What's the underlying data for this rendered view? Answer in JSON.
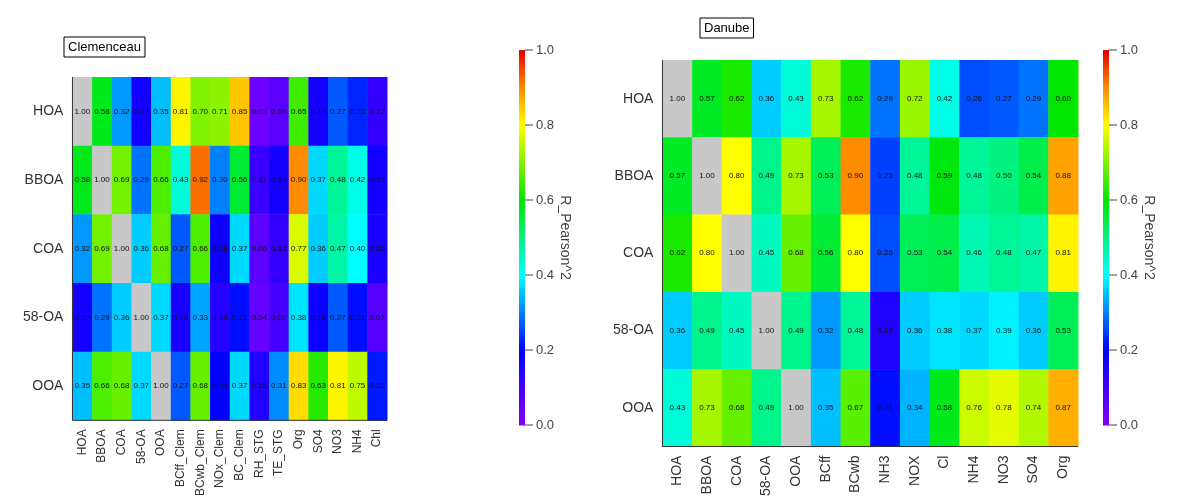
{
  "chart_data": [
    {
      "type": "heatmap",
      "title": "Clemenceau",
      "clabel": "R_Pearson^2",
      "categories": [
        "HOA",
        "BBOA",
        "COA",
        "58-OA",
        "OOA",
        "BCff_Clem",
        "BCwb_Clem",
        "NOx_Clem",
        "BC_Clem",
        "RH_STG",
        "TE_STG",
        "Org",
        "SO4",
        "NO3",
        "NH4",
        "Chl"
      ],
      "y_categories": [
        "HOA",
        "BBOA",
        "COA",
        "58-OA",
        "OOA"
      ],
      "cells": [
        [
          null,
          0.58,
          0.32,
          0.17,
          0.35,
          0.81,
          0.7,
          0.71,
          0.85,
          0.03,
          0.06,
          0.65,
          0.17,
          0.27,
          0.23,
          0.12
        ],
        [
          0.58,
          null,
          0.69,
          0.29,
          0.66,
          0.43,
          0.92,
          0.3,
          0.56,
          0.11,
          0.17,
          0.9,
          0.37,
          0.48,
          0.42,
          0.17
        ],
        [
          0.32,
          0.69,
          null,
          0.36,
          0.68,
          0.27,
          0.66,
          0.18,
          0.37,
          0.06,
          0.12,
          0.77,
          0.36,
          0.47,
          0.4,
          0.16
        ],
        [
          0.17,
          0.29,
          0.36,
          null,
          0.37,
          0.16,
          0.33,
          0.14,
          0.21,
          0.04,
          0.09,
          0.38,
          0.18,
          0.27,
          0.21,
          0.07
        ],
        [
          0.35,
          0.66,
          0.68,
          0.37,
          null,
          0.27,
          0.68,
          0.2,
          0.37,
          0.15,
          0.31,
          0.83,
          0.63,
          0.81,
          0.75,
          0.22
        ]
      ],
      "cell_labels": [
        [
          "1.00",
          "0.58",
          "0.32",
          "0.17",
          "0.35",
          "0.81",
          "0.70",
          "0.71",
          "0.85",
          "0.03",
          "0.06",
          "0.65",
          "0.17",
          "0.27",
          "0.23",
          "0.12"
        ],
        [
          "0.58",
          "1.00",
          "0.69",
          "0.29",
          "0.66",
          "0.43",
          "0.92",
          "0.30",
          "0.56",
          "0.11",
          "0.17",
          "0.90",
          "0.37",
          "0.48",
          "0.42",
          "0.17"
        ],
        [
          "0.32",
          "0.69",
          "1.00",
          "0.36",
          "0.68",
          "0.27",
          "0.66",
          "0.18",
          "0.37",
          "0.06",
          "0.12",
          "0.77",
          "0.36",
          "0.47",
          "0.40",
          "0.16"
        ],
        [
          "0.17",
          "0.29",
          "0.36",
          "1.00",
          "0.37",
          "0.16",
          "0.33",
          "0.14",
          "0.21",
          "0.04",
          "0.09",
          "0.38",
          "0.18",
          "0.27",
          "0.21",
          "0.07"
        ],
        [
          "0.35",
          "0.66",
          "0.68",
          "0.37",
          "1.00",
          "0.27",
          "0.68",
          "0.20",
          "0.37",
          "0.15",
          "0.31",
          "0.83",
          "0.63",
          "0.81",
          "0.75",
          "0.22"
        ]
      ],
      "clim": [
        0,
        1
      ],
      "cticks": [
        {
          "value": 0,
          "label": "0.0"
        },
        {
          "value": 0.2,
          "label": "0.2"
        },
        {
          "value": 0.4,
          "label": "0.4"
        },
        {
          "value": 0.6,
          "label": "0.6"
        },
        {
          "value": 0.8,
          "label": "0.8"
        },
        {
          "value": 1,
          "label": "1.0"
        }
      ]
    },
    {
      "type": "heatmap",
      "title": "Danube",
      "clabel": "R_Pearson^2",
      "categories": [
        "HOA",
        "BBOA",
        "COA",
        "58-OA",
        "OOA",
        "BCff",
        "BCwb",
        "NH3",
        "NOX",
        "Cl",
        "NH4",
        "NO3",
        "SO4",
        "Org"
      ],
      "y_categories": [
        "HOA",
        "BBOA",
        "COA",
        "58-OA",
        "OOA"
      ],
      "cells": [
        [
          null,
          0.57,
          0.62,
          0.36,
          0.43,
          0.73,
          0.62,
          0.29,
          0.72,
          0.42,
          0.26,
          0.27,
          0.29,
          0.6
        ],
        [
          0.57,
          null,
          0.8,
          0.49,
          0.73,
          0.53,
          0.9,
          0.25,
          0.48,
          0.59,
          0.48,
          0.5,
          0.54,
          0.88
        ],
        [
          0.62,
          0.8,
          null,
          0.45,
          0.68,
          0.56,
          0.8,
          0.26,
          0.53,
          0.54,
          0.46,
          0.48,
          0.47,
          0.81
        ],
        [
          0.36,
          0.49,
          0.45,
          null,
          0.49,
          0.32,
          0.48,
          0.15,
          0.36,
          0.38,
          0.37,
          0.39,
          0.36,
          0.53
        ],
        [
          0.43,
          0.73,
          0.68,
          0.49,
          null,
          0.35,
          0.67,
          0.21,
          0.34,
          0.58,
          0.76,
          0.78,
          0.74,
          0.87
        ]
      ],
      "cell_labels": [
        [
          "1.00",
          "0.57",
          "0.62",
          "0.36",
          "0.43",
          "0.73",
          "0.62",
          "0.29",
          "0.72",
          "0.42",
          "0.26",
          "0.27",
          "0.29",
          "0.60"
        ],
        [
          "0.57",
          "1.00",
          "0.80",
          "0.49",
          "0.73",
          "0.53",
          "0.90",
          "0.25",
          "0.48",
          "0.59",
          "0.48",
          "0.50",
          "0.54",
          "0.88"
        ],
        [
          "0.62",
          "0.80",
          "1.00",
          "0.45",
          "0.68",
          "0.56",
          "0.80",
          "0.26",
          "0.53",
          "0.54",
          "0.46",
          "0.48",
          "0.47",
          "0.81"
        ],
        [
          "0.36",
          "0.49",
          "0.45",
          "1.00",
          "0.49",
          "0.32",
          "0.48",
          "0.15",
          "0.36",
          "0.38",
          "0.37",
          "0.39",
          "0.36",
          "0.53"
        ],
        [
          "0.43",
          "0.73",
          "0.68",
          "0.49",
          "1.00",
          "0.35",
          "0.67",
          "0.21",
          "0.34",
          "0.58",
          "0.76",
          "0.78",
          "0.74",
          "0.87"
        ]
      ],
      "clim": [
        0,
        1
      ],
      "cticks": [
        {
          "value": 0,
          "label": "0.0"
        },
        {
          "value": 0.2,
          "label": "0.2"
        },
        {
          "value": 0.4,
          "label": "0.4"
        },
        {
          "value": 0.6,
          "label": "0.6"
        },
        {
          "value": 0.8,
          "label": "0.8"
        },
        {
          "value": 1,
          "label": "1.0"
        }
      ]
    }
  ]
}
